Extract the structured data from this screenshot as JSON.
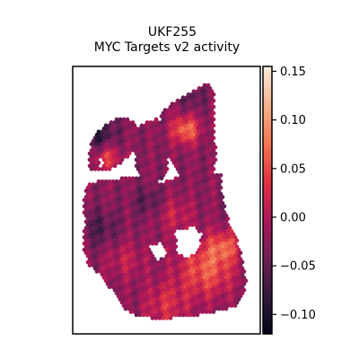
{
  "chart_data": {
    "type": "heatmap",
    "subtype": "spatial-spot-map",
    "title_lines": [
      "UKF255",
      "MYC Targets v2 activity"
    ],
    "xlabel": "",
    "ylabel": "",
    "x_ticks": [],
    "y_ticks": [],
    "grid": false,
    "legend": "none",
    "colormap": "rocket",
    "colorbar": {
      "position": "right",
      "range": [
        -0.12,
        0.155
      ],
      "ticks": [
        0.15,
        0.1,
        0.05,
        0.0,
        -0.05,
        -0.1
      ],
      "tick_labels": [
        "0.15",
        "0.10",
        "0.05",
        "0.00",
        "−0.05",
        "−0.10"
      ],
      "gradient_stops": [
        "#03051a",
        "#35193e",
        "#701f57",
        "#ad1759",
        "#e13342",
        "#f37651",
        "#f6b48f",
        "#faebdd"
      ]
    },
    "spots_description": "Hexagonal grid of tissue spots in an irregular sample shape; values mostly in -0.05 to 0.05 with warmer regions (up to ~0.12) at upper-right lobe and bottom-right area."
  }
}
